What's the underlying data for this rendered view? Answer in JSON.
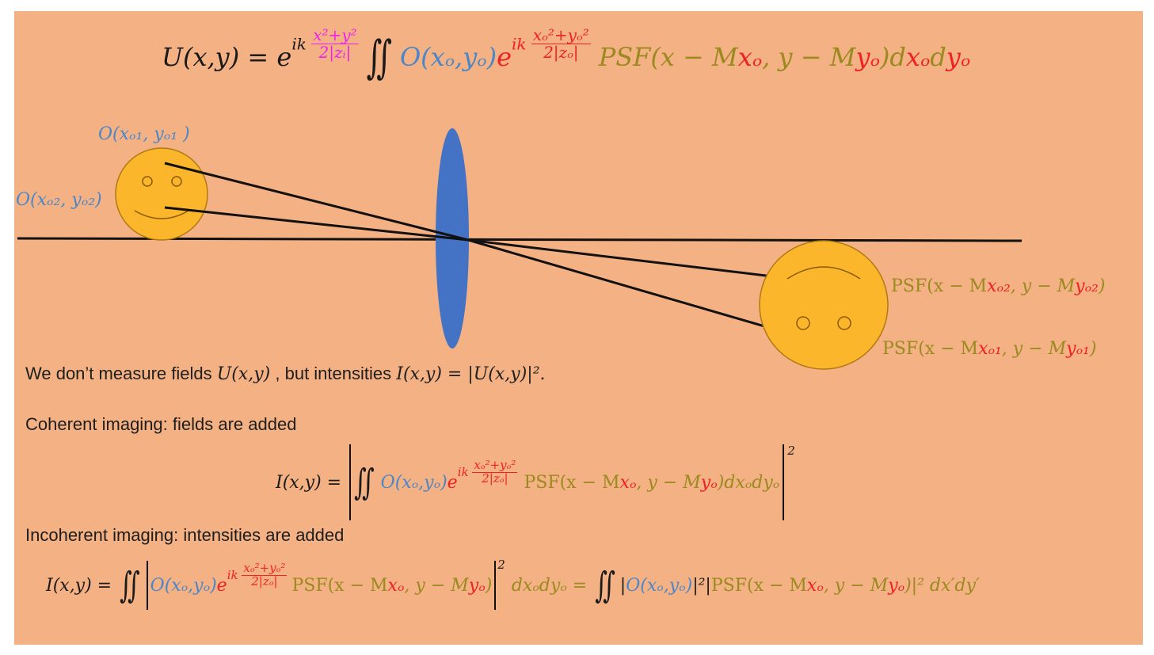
{
  "main_equation": {
    "lhs": "U(x,y) = e",
    "exp_ik": "ik",
    "exp_num": "x²+y²",
    "exp_den": "2|zᵢ|",
    "integral": "∬",
    "obj": "O(xₒ,yₒ)",
    "e2": "e",
    "exp2_ik": "ik",
    "exp2_num": "xₒ²+yₒ²",
    "exp2_den": "2|zₒ|",
    "psf": "PSF(x − M",
    "psf_xo": "xₒ",
    "psf_mid": ", y − M",
    "psf_yo": "yₒ",
    "psf_close": ")d",
    "dxo": "xₒ",
    "d2": "d",
    "dyo": "yₒ"
  },
  "diagram": {
    "obj1_label": "O(xₒ₁, yₒ₁ )",
    "obj2_label": "O(xₒ₂, yₒ₂)",
    "psf2_label": {
      "a": "PSF(x − M",
      "b": "xₒ₂",
      "c": ", y − M",
      "d": "yₒ₂",
      "e": ")"
    },
    "psf1_label": {
      "a": "PSF(x − M",
      "b": "xₒ₁",
      "c": ", y − M",
      "d": "yₒ₁",
      "e": ")"
    },
    "colors": {
      "face": "#fbb62b",
      "face_outline": "#b07a10",
      "lens": "#4472c4",
      "line": "#111111"
    }
  },
  "text": {
    "measure_a": "We don’t measure fields ",
    "measure_b": "U(x,y)",
    "measure_c": " , but intensities ",
    "measure_d": "I(x,y) = |U(x,y)|².",
    "coherent": "Coherent imaging: fields are added",
    "incoherent": "Incoherent imaging: intensities are added"
  },
  "coherent_eq": {
    "lhs": "I(x,y) =",
    "integral": "∬",
    "obj": "O(xₒ,yₒ)",
    "e": "e",
    "ik": "ik",
    "num": "xₒ²+yₒ²",
    "den": "2|zₒ|",
    "psf_a": "PSF(x − M",
    "psf_b": "xₒ",
    "psf_c": ", y − M",
    "psf_d": "yₒ",
    "psf_e": ")dxₒdyₒ",
    "power": "2"
  },
  "incoherent_eq": {
    "lhs": "I(x,y) =",
    "integral": "∬",
    "obj": "O(xₒ,yₒ)",
    "e": "e",
    "ik": "ik",
    "num": "xₒ²+yₒ²",
    "den": "2|zₒ|",
    "psf_a": "PSF(x − M",
    "psf_b": "xₒ",
    "psf_c": ", y − M",
    "psf_d": "yₒ",
    "psf_e": ")",
    "power": "2",
    "dxdy": "dxₒdyₒ =",
    "integral2": "∬",
    "abs_obj_a": "|",
    "abs_obj": "O(xₒ,yₒ)",
    "abs_obj_b": "|²|",
    "psf2_a": "PSF(x − M",
    "psf2_b": "xₒ",
    "psf2_c": ", y − M",
    "psf2_d": "yₒ",
    "psf2_e": ")|² dx′dy′"
  }
}
